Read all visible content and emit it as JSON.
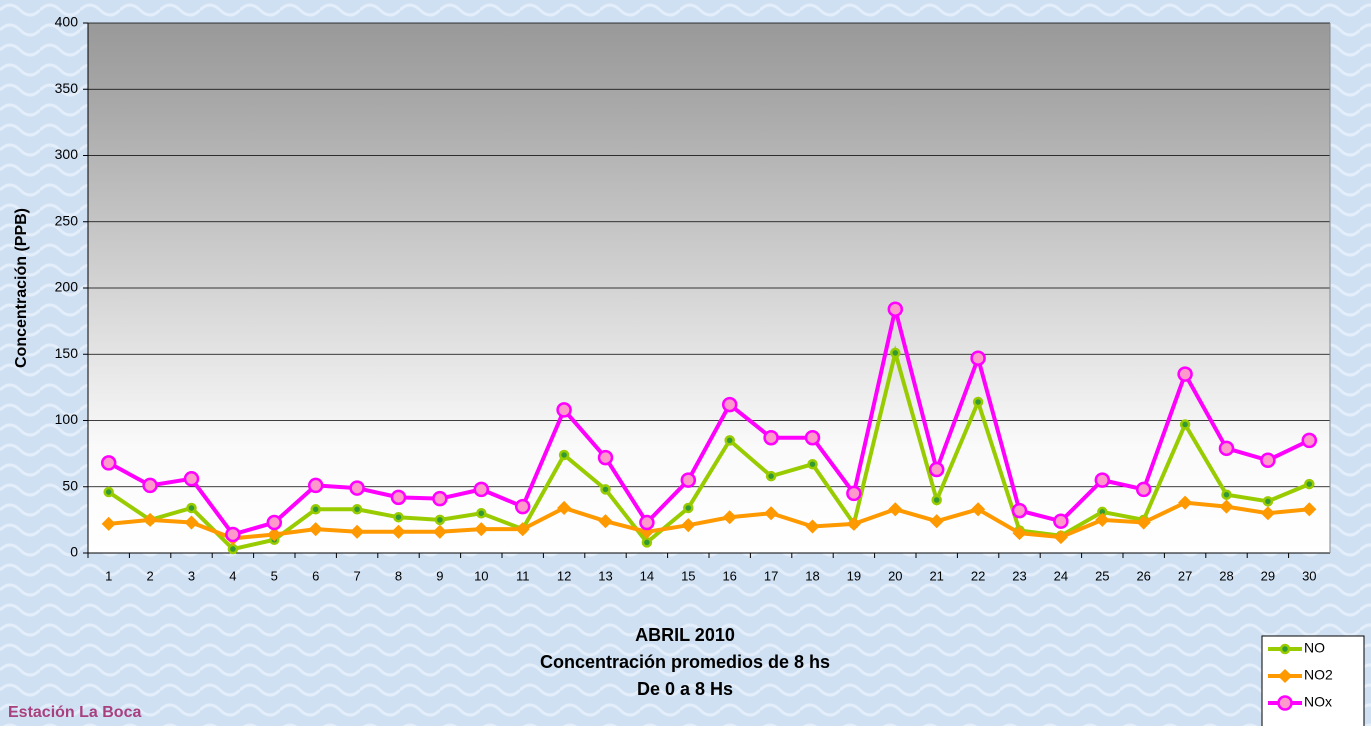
{
  "chart_data": {
    "type": "line",
    "title": "ABRIL 2010",
    "subtitle": [
      "Concentración promedios de 8 hs",
      "De 0 a 8 Hs"
    ],
    "annotation": "Estación La Boca",
    "y_label": "Concentración  (PPB)",
    "categories": [
      "1",
      "2",
      "3",
      "4",
      "5",
      "6",
      "7",
      "8",
      "9",
      "10",
      "11",
      "12",
      "13",
      "14",
      "15",
      "16",
      "17",
      "18",
      "19",
      "20",
      "21",
      "22",
      "23",
      "24",
      "25",
      "26",
      "27",
      "28",
      "29",
      "30"
    ],
    "series": [
      {
        "name": "NO",
        "color": "#99cc00",
        "marker": "circle",
        "marker_fill": "#339933",
        "values": [
          46,
          25,
          34,
          3,
          10,
          33,
          33,
          27,
          25,
          30,
          18,
          74,
          48,
          8,
          34,
          85,
          58,
          67,
          22,
          151,
          40,
          114,
          17,
          13,
          31,
          25,
          97,
          44,
          39,
          52
        ]
      },
      {
        "name": "NO2",
        "color": "#ff9900",
        "marker": "diamond",
        "marker_fill": "#ff9900",
        "values": [
          22,
          25,
          23,
          11,
          14,
          18,
          16,
          16,
          16,
          18,
          18,
          34,
          24,
          16,
          21,
          27,
          30,
          20,
          22,
          33,
          24,
          33,
          15,
          12,
          25,
          23,
          38,
          35,
          30,
          33
        ]
      },
      {
        "name": "NOx",
        "color": "#ff00ff",
        "marker": "circle",
        "marker_fill": "#ff99cc",
        "values": [
          68,
          51,
          56,
          14,
          23,
          51,
          49,
          42,
          41,
          48,
          35,
          108,
          72,
          23,
          55,
          112,
          87,
          87,
          45,
          184,
          63,
          147,
          32,
          24,
          55,
          48,
          135,
          79,
          70,
          85
        ]
      }
    ],
    "ylim": [
      0,
      400
    ],
    "yticks": [
      0,
      50,
      100,
      150,
      200,
      250,
      300,
      350,
      400
    ],
    "grid": true,
    "legend": "bottom-right"
  }
}
